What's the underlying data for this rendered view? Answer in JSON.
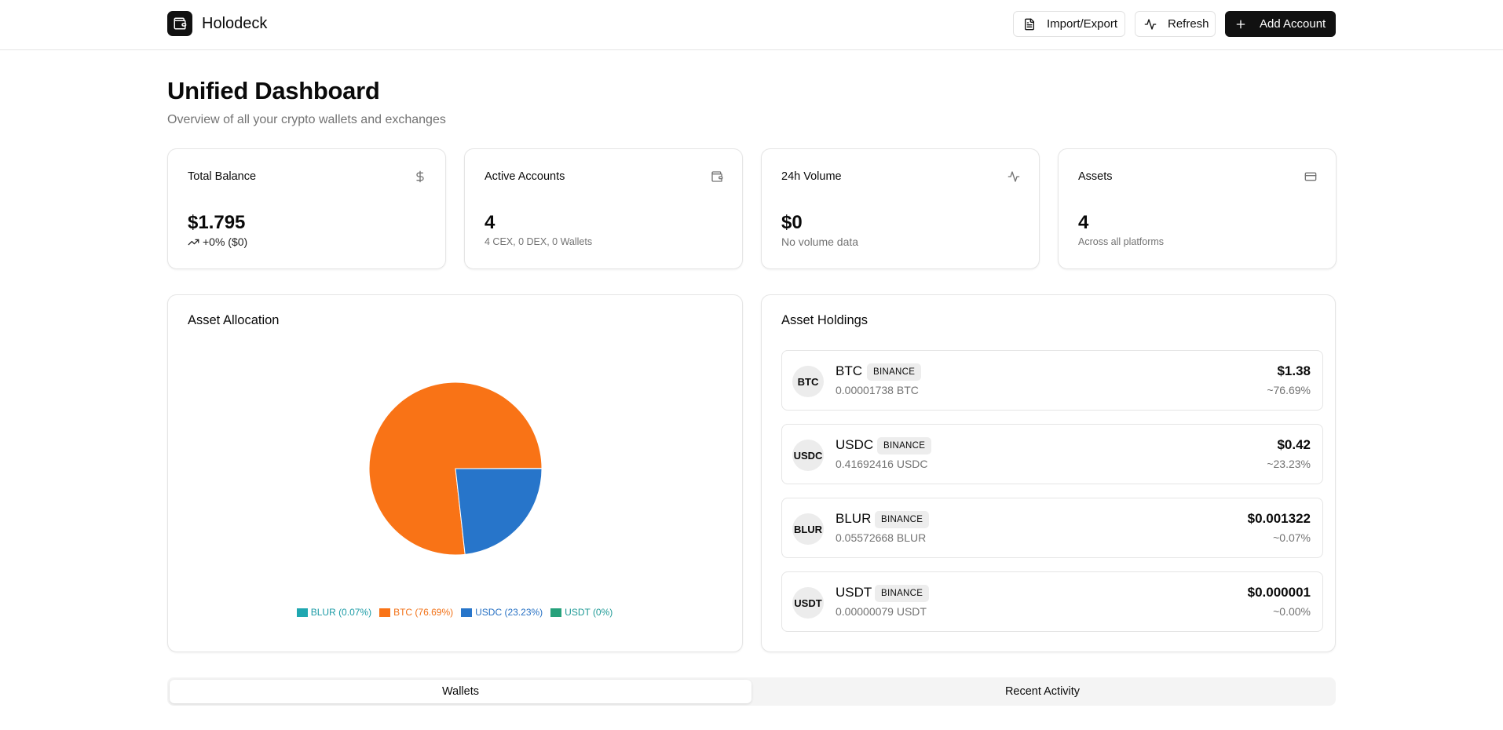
{
  "app": {
    "name": "Holodeck"
  },
  "header": {
    "import_export_label": "Import/Export",
    "refresh_label": "Refresh",
    "add_account_label": "Add Account"
  },
  "page": {
    "title": "Unified Dashboard",
    "subtitle": "Overview of all your crypto wallets and exchanges"
  },
  "stats": {
    "total_balance": {
      "label": "Total Balance",
      "value": "$1.795",
      "change": "+0% ($0)",
      "icon": "dollar-icon"
    },
    "active_accounts": {
      "label": "Active Accounts",
      "value": "4",
      "sub": "4 CEX, 0 DEX, 0 Wallets",
      "icon": "wallet-icon"
    },
    "volume": {
      "label": "24h Volume",
      "value": "$0",
      "sub": "No volume data",
      "icon": "activity-icon"
    },
    "assets": {
      "label": "Assets",
      "value": "4",
      "sub": "Across all platforms",
      "icon": "credit-card-icon"
    }
  },
  "allocation": {
    "title": "Asset Allocation",
    "legend": [
      {
        "label": "BLUR (0.07%)",
        "color": "#1fa7b0",
        "text_color": "#1a9aa5"
      },
      {
        "label": "BTC (76.69%)",
        "color": "#f97316",
        "text_color": "#f27116"
      },
      {
        "label": "USDC (23.23%)",
        "color": "#2775ca",
        "text_color": "#2771c4"
      },
      {
        "label": "USDT (0%)",
        "color": "#26a17b",
        "text_color": "#1f9a96"
      }
    ]
  },
  "chart_data": {
    "type": "pie",
    "title": "Asset Allocation",
    "legend_position": "bottom",
    "slices": [
      {
        "label": "BLUR",
        "value": 0.07,
        "color": "#1fa7b0"
      },
      {
        "label": "BTC",
        "value": 76.69,
        "color": "#f97316"
      },
      {
        "label": "USDC",
        "value": 23.23,
        "color": "#2775ca"
      },
      {
        "label": "USDT",
        "value": 0,
        "color": "#26a17b"
      }
    ]
  },
  "holdings": {
    "title": "Asset Holdings",
    "items": [
      {
        "symbol": "BTC",
        "exchange": "BINANCE",
        "amount": "0.00001738 BTC",
        "value": "$1.38",
        "pct": "~76.69%"
      },
      {
        "symbol": "USDC",
        "exchange": "BINANCE",
        "amount": "0.41692416 USDC",
        "value": "$0.42",
        "pct": "~23.23%"
      },
      {
        "symbol": "BLUR",
        "exchange": "BINANCE",
        "amount": "0.05572668 BLUR",
        "value": "$0.001322",
        "pct": "~0.07%"
      },
      {
        "symbol": "USDT",
        "exchange": "BINANCE",
        "amount": "0.00000079 USDT",
        "value": "$0.000001",
        "pct": "~0.00%"
      }
    ]
  },
  "tabs": [
    {
      "label": "Wallets",
      "active": true
    },
    {
      "label": "Recent Activity",
      "active": false
    }
  ]
}
